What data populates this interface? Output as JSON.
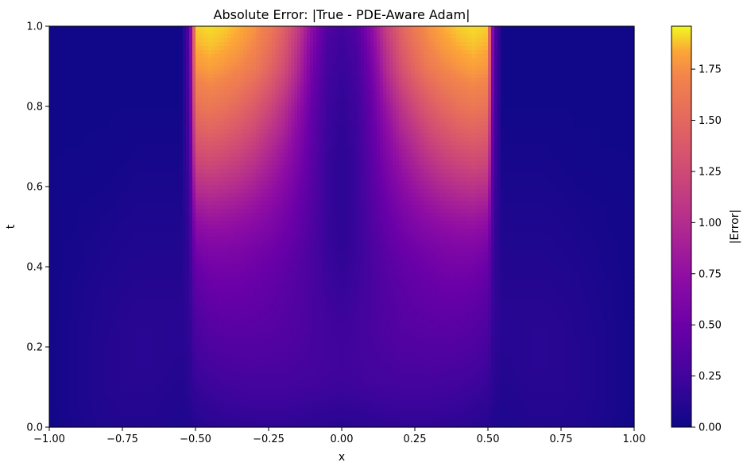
{
  "chart_data": {
    "type": "heatmap",
    "title": "Absolute Error: |True - PDE-Aware Adam|",
    "xlabel": "x",
    "ylabel": "t",
    "xlim": [
      -1.0,
      1.0
    ],
    "ylim": [
      0.0,
      1.0
    ],
    "x_ticks": [
      "−1.00",
      "−0.75",
      "−0.50",
      "−0.25",
      "0.00",
      "0.25",
      "0.50",
      "0.75",
      "1.00"
    ],
    "x_tick_values": [
      -1.0,
      -0.75,
      -0.5,
      -0.25,
      0.0,
      0.25,
      0.5,
      0.75,
      1.0
    ],
    "y_ticks": [
      "0.0",
      "0.2",
      "0.4",
      "0.6",
      "0.8",
      "1.0"
    ],
    "y_tick_values": [
      0.0,
      0.2,
      0.4,
      0.6,
      0.8,
      1.0
    ],
    "colormap": "plasma",
    "grid": false,
    "colorbar": {
      "label": "|Error|",
      "range": [
        0.0,
        1.96
      ],
      "ticks": [
        "0.00",
        "0.25",
        "0.50",
        "0.75",
        "1.00",
        "1.25",
        "1.50",
        "1.75"
      ],
      "tick_values": [
        0.0,
        0.25,
        0.5,
        0.75,
        1.0,
        1.25,
        1.5,
        1.75
      ]
    },
    "t_rows": [
      1.0,
      0.95,
      0.9,
      0.85,
      0.8,
      0.75,
      0.7,
      0.65,
      0.6,
      0.55,
      0.5,
      0.45,
      0.4,
      0.35,
      0.3,
      0.25,
      0.2,
      0.15,
      0.1,
      0.05,
      0.0
    ],
    "x_cols": [
      -1.0,
      -0.9,
      -0.8,
      -0.75,
      -0.7,
      -0.65,
      -0.6,
      -0.55,
      -0.52,
      -0.5,
      -0.45,
      -0.4,
      -0.35,
      -0.3,
      -0.25,
      -0.2,
      -0.15,
      -0.1,
      -0.05,
      0.0,
      0.05,
      0.1,
      0.15,
      0.2,
      0.25,
      0.3,
      0.35,
      0.4,
      0.45,
      0.5,
      0.52,
      0.55,
      0.6,
      0.65,
      0.7,
      0.75,
      0.8,
      0.9,
      1.0
    ],
    "values": [
      [
        0.02,
        0.02,
        0.02,
        0.02,
        0.02,
        0.02,
        0.02,
        0.02,
        0.4,
        1.9,
        1.92,
        1.9,
        1.85,
        1.78,
        1.65,
        1.45,
        1.15,
        0.7,
        0.35,
        0.25,
        0.35,
        0.7,
        1.15,
        1.45,
        1.65,
        1.78,
        1.85,
        1.9,
        1.92,
        1.9,
        0.4,
        0.02,
        0.02,
        0.02,
        0.02,
        0.02,
        0.02,
        0.02,
        0.02
      ],
      [
        0.02,
        0.02,
        0.02,
        0.02,
        0.02,
        0.02,
        0.02,
        0.02,
        0.38,
        1.85,
        1.88,
        1.85,
        1.8,
        1.72,
        1.58,
        1.38,
        1.05,
        0.62,
        0.3,
        0.22,
        0.3,
        0.62,
        1.05,
        1.38,
        1.58,
        1.72,
        1.8,
        1.85,
        1.88,
        1.85,
        0.38,
        0.02,
        0.02,
        0.02,
        0.02,
        0.02,
        0.02,
        0.02,
        0.02
      ],
      [
        0.02,
        0.02,
        0.02,
        0.02,
        0.02,
        0.02,
        0.02,
        0.02,
        0.36,
        1.78,
        1.82,
        1.78,
        1.73,
        1.65,
        1.5,
        1.3,
        0.98,
        0.55,
        0.27,
        0.2,
        0.27,
        0.55,
        0.98,
        1.3,
        1.5,
        1.65,
        1.73,
        1.78,
        1.82,
        1.78,
        0.36,
        0.02,
        0.02,
        0.02,
        0.02,
        0.02,
        0.02,
        0.02,
        0.02
      ],
      [
        0.02,
        0.02,
        0.02,
        0.02,
        0.02,
        0.02,
        0.02,
        0.02,
        0.34,
        1.68,
        1.72,
        1.68,
        1.62,
        1.52,
        1.38,
        1.18,
        0.88,
        0.5,
        0.25,
        0.18,
        0.25,
        0.5,
        0.88,
        1.18,
        1.38,
        1.52,
        1.62,
        1.68,
        1.72,
        1.68,
        0.34,
        0.02,
        0.02,
        0.02,
        0.02,
        0.02,
        0.02,
        0.02,
        0.02
      ],
      [
        0.02,
        0.02,
        0.02,
        0.02,
        0.02,
        0.02,
        0.02,
        0.02,
        0.32,
        1.58,
        1.62,
        1.58,
        1.5,
        1.4,
        1.25,
        1.05,
        0.78,
        0.45,
        0.23,
        0.17,
        0.23,
        0.45,
        0.78,
        1.05,
        1.25,
        1.4,
        1.5,
        1.58,
        1.62,
        1.58,
        0.32,
        0.02,
        0.02,
        0.02,
        0.02,
        0.02,
        0.02,
        0.02,
        0.02
      ],
      [
        0.02,
        0.02,
        0.02,
        0.03,
        0.03,
        0.03,
        0.03,
        0.03,
        0.3,
        1.45,
        1.5,
        1.46,
        1.38,
        1.28,
        1.12,
        0.95,
        0.7,
        0.42,
        0.22,
        0.16,
        0.22,
        0.42,
        0.7,
        0.95,
        1.12,
        1.28,
        1.38,
        1.46,
        1.5,
        1.45,
        0.3,
        0.03,
        0.03,
        0.03,
        0.03,
        0.03,
        0.02,
        0.02,
        0.02
      ],
      [
        0.02,
        0.02,
        0.03,
        0.03,
        0.04,
        0.04,
        0.04,
        0.04,
        0.28,
        1.32,
        1.36,
        1.32,
        1.25,
        1.15,
        1.0,
        0.85,
        0.64,
        0.4,
        0.21,
        0.15,
        0.21,
        0.4,
        0.64,
        0.85,
        1.0,
        1.15,
        1.25,
        1.32,
        1.36,
        1.32,
        0.28,
        0.04,
        0.04,
        0.04,
        0.04,
        0.03,
        0.03,
        0.02,
        0.02
      ],
      [
        0.02,
        0.03,
        0.03,
        0.04,
        0.05,
        0.05,
        0.05,
        0.05,
        0.26,
        1.18,
        1.22,
        1.18,
        1.12,
        1.02,
        0.9,
        0.76,
        0.58,
        0.38,
        0.2,
        0.14,
        0.2,
        0.38,
        0.58,
        0.76,
        0.9,
        1.02,
        1.12,
        1.18,
        1.22,
        1.18,
        0.26,
        0.05,
        0.05,
        0.05,
        0.05,
        0.04,
        0.03,
        0.03,
        0.02
      ],
      [
        0.02,
        0.03,
        0.04,
        0.05,
        0.06,
        0.06,
        0.06,
        0.06,
        0.24,
        1.02,
        1.06,
        1.03,
        0.98,
        0.9,
        0.8,
        0.68,
        0.53,
        0.36,
        0.2,
        0.14,
        0.2,
        0.36,
        0.53,
        0.68,
        0.8,
        0.9,
        0.98,
        1.03,
        1.06,
        1.02,
        0.24,
        0.06,
        0.06,
        0.06,
        0.06,
        0.05,
        0.04,
        0.03,
        0.02
      ],
      [
        0.03,
        0.04,
        0.05,
        0.06,
        0.07,
        0.07,
        0.07,
        0.07,
        0.22,
        0.85,
        0.9,
        0.88,
        0.84,
        0.78,
        0.7,
        0.6,
        0.48,
        0.34,
        0.2,
        0.14,
        0.2,
        0.34,
        0.48,
        0.6,
        0.7,
        0.78,
        0.84,
        0.88,
        0.9,
        0.85,
        0.22,
        0.07,
        0.07,
        0.07,
        0.07,
        0.06,
        0.05,
        0.04,
        0.03
      ],
      [
        0.03,
        0.04,
        0.06,
        0.07,
        0.08,
        0.08,
        0.08,
        0.08,
        0.2,
        0.7,
        0.76,
        0.75,
        0.72,
        0.68,
        0.62,
        0.54,
        0.44,
        0.32,
        0.2,
        0.15,
        0.2,
        0.32,
        0.44,
        0.54,
        0.62,
        0.68,
        0.72,
        0.75,
        0.76,
        0.7,
        0.2,
        0.08,
        0.08,
        0.08,
        0.08,
        0.07,
        0.06,
        0.04,
        0.03
      ],
      [
        0.03,
        0.05,
        0.07,
        0.08,
        0.09,
        0.09,
        0.09,
        0.09,
        0.19,
        0.58,
        0.64,
        0.64,
        0.62,
        0.58,
        0.54,
        0.48,
        0.4,
        0.3,
        0.2,
        0.16,
        0.2,
        0.3,
        0.4,
        0.48,
        0.54,
        0.58,
        0.62,
        0.64,
        0.64,
        0.58,
        0.19,
        0.09,
        0.09,
        0.09,
        0.09,
        0.08,
        0.07,
        0.05,
        0.03
      ],
      [
        0.03,
        0.05,
        0.08,
        0.09,
        0.1,
        0.1,
        0.1,
        0.1,
        0.18,
        0.48,
        0.55,
        0.56,
        0.55,
        0.52,
        0.48,
        0.43,
        0.37,
        0.29,
        0.21,
        0.17,
        0.21,
        0.29,
        0.37,
        0.43,
        0.48,
        0.52,
        0.55,
        0.56,
        0.55,
        0.48,
        0.18,
        0.1,
        0.1,
        0.1,
        0.1,
        0.09,
        0.08,
        0.05,
        0.03
      ],
      [
        0.03,
        0.06,
        0.09,
        0.1,
        0.11,
        0.11,
        0.11,
        0.11,
        0.17,
        0.41,
        0.48,
        0.5,
        0.49,
        0.47,
        0.44,
        0.4,
        0.35,
        0.29,
        0.22,
        0.19,
        0.22,
        0.29,
        0.35,
        0.4,
        0.44,
        0.47,
        0.49,
        0.5,
        0.48,
        0.41,
        0.17,
        0.11,
        0.11,
        0.11,
        0.11,
        0.1,
        0.09,
        0.06,
        0.03
      ],
      [
        0.03,
        0.06,
        0.1,
        0.11,
        0.12,
        0.12,
        0.12,
        0.12,
        0.17,
        0.36,
        0.42,
        0.44,
        0.44,
        0.43,
        0.41,
        0.38,
        0.34,
        0.29,
        0.24,
        0.21,
        0.24,
        0.29,
        0.34,
        0.38,
        0.41,
        0.43,
        0.44,
        0.44,
        0.42,
        0.36,
        0.17,
        0.12,
        0.12,
        0.12,
        0.12,
        0.11,
        0.1,
        0.06,
        0.03
      ],
      [
        0.03,
        0.07,
        0.1,
        0.12,
        0.13,
        0.13,
        0.12,
        0.12,
        0.16,
        0.31,
        0.37,
        0.39,
        0.4,
        0.39,
        0.38,
        0.36,
        0.33,
        0.29,
        0.25,
        0.23,
        0.25,
        0.29,
        0.33,
        0.36,
        0.38,
        0.39,
        0.4,
        0.39,
        0.37,
        0.31,
        0.16,
        0.12,
        0.12,
        0.13,
        0.13,
        0.12,
        0.1,
        0.07,
        0.03
      ],
      [
        0.03,
        0.07,
        0.11,
        0.12,
        0.13,
        0.13,
        0.12,
        0.12,
        0.15,
        0.27,
        0.32,
        0.34,
        0.35,
        0.35,
        0.34,
        0.33,
        0.31,
        0.28,
        0.25,
        0.24,
        0.25,
        0.28,
        0.31,
        0.33,
        0.34,
        0.35,
        0.35,
        0.34,
        0.32,
        0.27,
        0.15,
        0.12,
        0.12,
        0.13,
        0.13,
        0.12,
        0.11,
        0.07,
        0.03
      ],
      [
        0.03,
        0.07,
        0.11,
        0.12,
        0.13,
        0.13,
        0.12,
        0.11,
        0.14,
        0.23,
        0.27,
        0.29,
        0.3,
        0.31,
        0.3,
        0.3,
        0.28,
        0.27,
        0.25,
        0.24,
        0.25,
        0.27,
        0.28,
        0.3,
        0.3,
        0.31,
        0.3,
        0.29,
        0.27,
        0.23,
        0.14,
        0.11,
        0.12,
        0.13,
        0.13,
        0.12,
        0.11,
        0.07,
        0.03
      ],
      [
        0.03,
        0.07,
        0.11,
        0.12,
        0.12,
        0.12,
        0.11,
        0.1,
        0.13,
        0.19,
        0.22,
        0.24,
        0.25,
        0.26,
        0.26,
        0.26,
        0.25,
        0.24,
        0.23,
        0.22,
        0.23,
        0.24,
        0.25,
        0.26,
        0.26,
        0.26,
        0.25,
        0.24,
        0.22,
        0.19,
        0.13,
        0.1,
        0.11,
        0.12,
        0.12,
        0.12,
        0.11,
        0.07,
        0.03
      ],
      [
        0.03,
        0.07,
        0.1,
        0.11,
        0.11,
        0.11,
        0.1,
        0.09,
        0.11,
        0.15,
        0.17,
        0.19,
        0.2,
        0.21,
        0.21,
        0.21,
        0.2,
        0.19,
        0.18,
        0.17,
        0.18,
        0.19,
        0.2,
        0.21,
        0.21,
        0.21,
        0.2,
        0.19,
        0.17,
        0.15,
        0.11,
        0.09,
        0.1,
        0.11,
        0.11,
        0.11,
        0.1,
        0.07,
        0.03
      ],
      [
        0.03,
        0.06,
        0.09,
        0.1,
        0.1,
        0.1,
        0.09,
        0.08,
        0.09,
        0.11,
        0.13,
        0.14,
        0.15,
        0.16,
        0.16,
        0.16,
        0.15,
        0.14,
        0.13,
        0.12,
        0.13,
        0.14,
        0.15,
        0.16,
        0.16,
        0.16,
        0.15,
        0.14,
        0.13,
        0.11,
        0.09,
        0.08,
        0.09,
        0.1,
        0.1,
        0.1,
        0.09,
        0.06,
        0.03
      ]
    ]
  }
}
